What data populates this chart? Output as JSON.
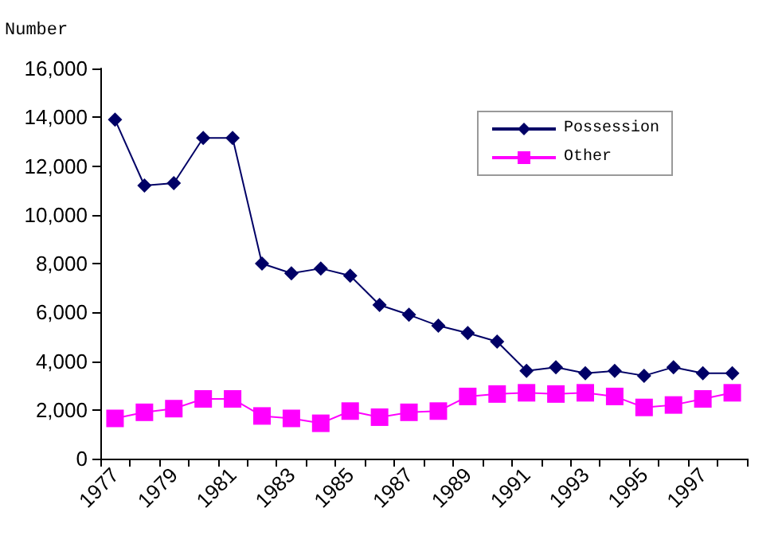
{
  "chart_data": {
    "type": "line",
    "ylabel": "Number",
    "categories": [
      "1977",
      null,
      "1979",
      null,
      "1981",
      null,
      "1983",
      null,
      "1985",
      null,
      "1987",
      null,
      "1989",
      null,
      "1991",
      null,
      "1993",
      null,
      "1995",
      null,
      "1997",
      null
    ],
    "series": [
      {
        "name": "Possession",
        "color": "#000066",
        "marker": "diamond",
        "values": [
          13900,
          11200,
          11300,
          13150,
          13150,
          8000,
          7600,
          7800,
          7500,
          6300,
          5900,
          5450,
          5150,
          4800,
          3600,
          3750,
          3500,
          3600,
          3400,
          3750,
          3500,
          3500
        ]
      },
      {
        "name": "Other",
        "color": "#ff00ff",
        "marker": "square",
        "values": [
          1650,
          1900,
          2050,
          2450,
          2450,
          1750,
          1650,
          1450,
          1950,
          1700,
          1900,
          1950,
          2550,
          2650,
          2700,
          2650,
          2700,
          2550,
          2100,
          2200,
          2450,
          2700
        ]
      }
    ],
    "ylim": [
      0,
      16000
    ],
    "yticks": [
      0,
      {
        "value": 2000,
        "label": "2,000"
      },
      {
        "value": 4000,
        "label": "4,000"
      },
      {
        "value": 6000,
        "label": "6,000"
      },
      {
        "value": 8000,
        "label": "8,000"
      },
      {
        "value": 10000,
        "label": "10,000"
      },
      {
        "value": 12000,
        "label": "12,000"
      },
      {
        "value": 14000,
        "label": "14,000"
      },
      {
        "value": 16000,
        "label": "16,000"
      }
    ],
    "grid": false,
    "legend": "top right",
    "line_style": "solid"
  }
}
